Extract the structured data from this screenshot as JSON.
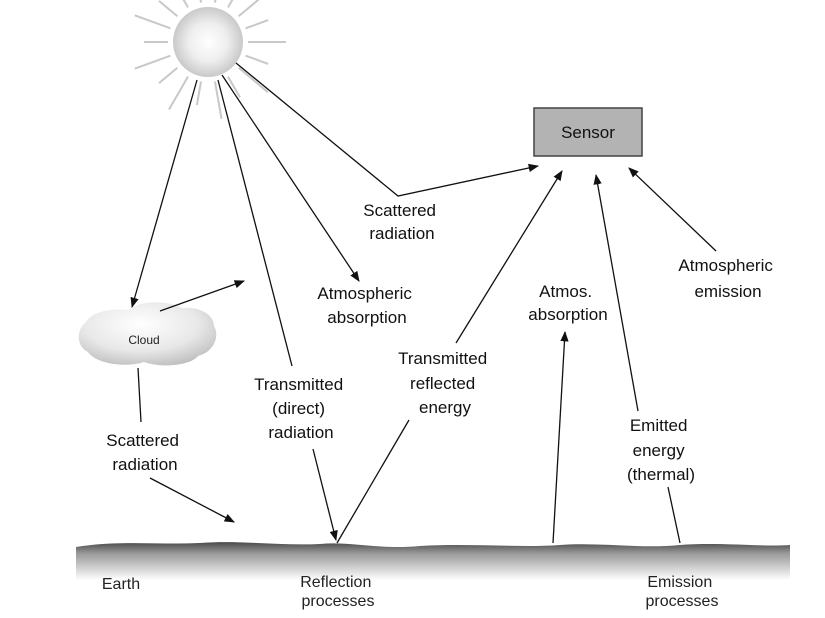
{
  "sensor": {
    "label": "Sensor"
  },
  "cloud": {
    "label": "Cloud"
  },
  "labels": {
    "scattered_top": [
      "Scattered",
      "radiation"
    ],
    "atmospheric_absorption": [
      "Atmospheric",
      "absorption"
    ],
    "transmitted_direct": [
      "Transmitted",
      "(direct)",
      "radiation"
    ],
    "scattered_left": [
      "Scattered",
      "radiation"
    ],
    "transmitted_reflected": [
      "Transmitted",
      "reflected",
      "energy"
    ],
    "atmos_absorption": [
      "Atmos.",
      "absorption"
    ],
    "atmospheric_emission": [
      "Atmospheric",
      "emission"
    ],
    "emitted_energy": [
      "Emitted",
      "energy",
      "(thermal)"
    ],
    "earth": "Earth",
    "reflection_processes": [
      "Reflection",
      "processes"
    ],
    "emission_processes": [
      "Emission",
      "processes"
    ]
  },
  "colors": {
    "sensor_fill": "#b3b3b3",
    "sensor_border": "#444444",
    "ground": "#4a4a4a",
    "ground_fade": "#e6e6e6",
    "sun_glow": "#d0d0d0",
    "sun_rays": "#c8c8c8",
    "arrow": "#111111"
  }
}
